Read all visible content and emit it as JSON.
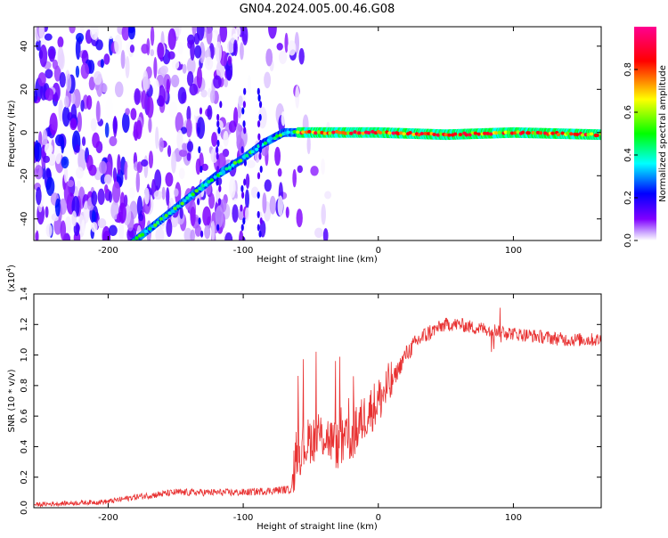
{
  "figure": {
    "title": "GN04.2024.005.00.46.G08"
  },
  "chart_data": [
    {
      "type": "heatmap",
      "xlabel": "Height of straight line (km)",
      "ylabel": "Frequency (Hz)",
      "xlim": [
        -255,
        165
      ],
      "ylim": [
        -50,
        49
      ],
      "xticks": [
        -200,
        -100,
        0,
        100
      ],
      "yticks": [
        -40,
        -20,
        0,
        20,
        40
      ],
      "colorbar": {
        "label": "Normalized spectral amplitude",
        "range": [
          0.0,
          1.0
        ],
        "ticks": [
          0.0,
          0.2,
          0.4,
          0.6,
          0.8
        ],
        "colormap": [
          "#ffffff",
          "#8000ff",
          "#0000ff",
          "#00ffff",
          "#00ff00",
          "#ffff00",
          "#ff0000",
          "#ff00aa"
        ]
      },
      "ridge": [
        {
          "x": -180,
          "y": -50
        },
        {
          "x": -160,
          "y": -40
        },
        {
          "x": -140,
          "y": -30
        },
        {
          "x": -120,
          "y": -20
        },
        {
          "x": -100,
          "y": -12
        },
        {
          "x": -85,
          "y": -5
        },
        {
          "x": -70,
          "y": 0
        },
        {
          "x": -55,
          "y": 0
        },
        {
          "x": 0,
          "y": 0
        },
        {
          "x": 50,
          "y": -1
        },
        {
          "x": 100,
          "y": 0
        },
        {
          "x": 165,
          "y": -1
        }
      ],
      "grid": false
    },
    {
      "type": "line",
      "xlabel": "Height of straight line (km)",
      "ylabel": "SNR (10 * v/v)",
      "yscale_label": "(x10",
      "yscale_exp": "4",
      "yscale_close": ")",
      "xlim": [
        -255,
        165
      ],
      "ylim": [
        0.0,
        1.4
      ],
      "xticks": [
        -200,
        -100,
        0,
        100
      ],
      "yticks": [
        0.0,
        0.2,
        0.4,
        0.6,
        0.8,
        1.0,
        1.2,
        1.4
      ],
      "series": [
        {
          "color": "#e83030",
          "x": [
            -255,
            -200,
            -180,
            -150,
            -100,
            -65,
            -60,
            -50,
            -40,
            -30,
            -20,
            -10,
            0,
            10,
            20,
            30,
            40,
            50,
            60,
            70,
            80,
            90,
            100,
            120,
            140,
            165
          ],
          "y": [
            0.02,
            0.04,
            0.07,
            0.1,
            0.1,
            0.12,
            0.35,
            0.45,
            0.48,
            0.4,
            0.45,
            0.6,
            0.7,
            0.82,
            1.0,
            1.1,
            1.16,
            1.2,
            1.2,
            1.18,
            1.17,
            1.16,
            1.14,
            1.12,
            1.1,
            1.1
          ]
        }
      ],
      "grid": false
    }
  ]
}
